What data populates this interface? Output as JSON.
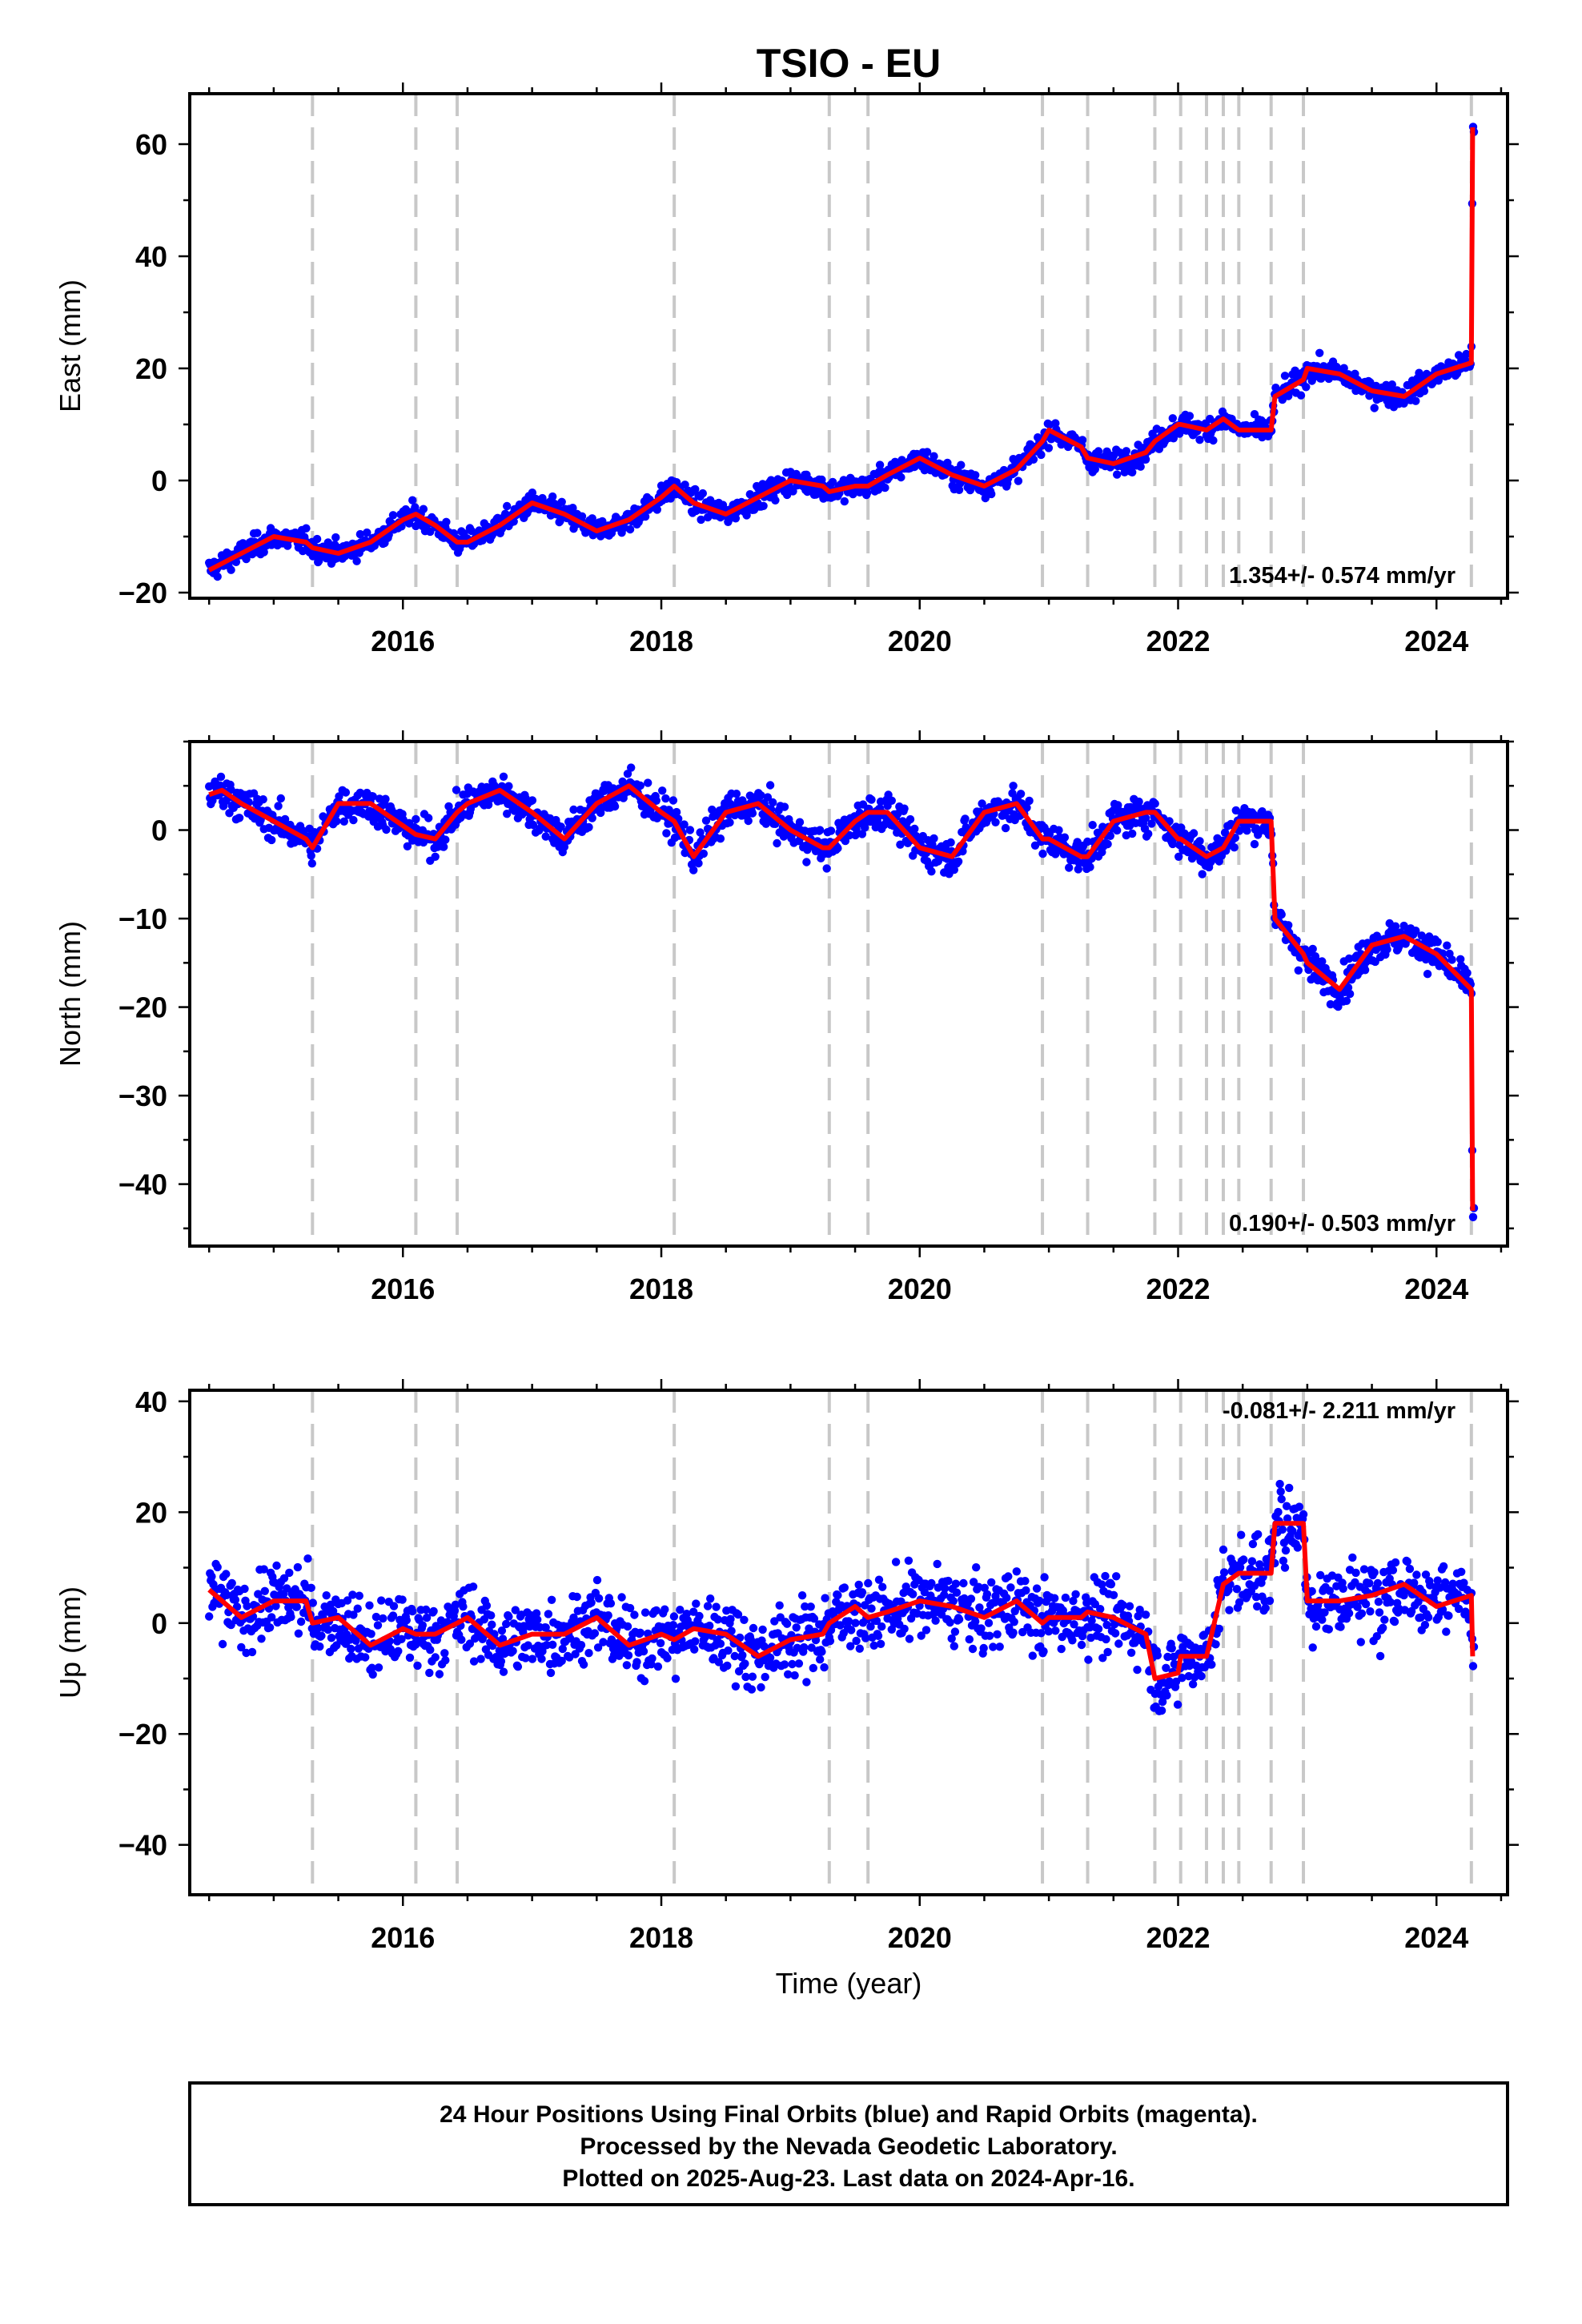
{
  "title": "TSIO - EU",
  "xlabel": "Time (year)",
  "colors": {
    "points": "#0000ff",
    "model": "#ff0000",
    "event_lines": "#c8c8c8",
    "frame": "#000000"
  },
  "caption": {
    "line1": "24 Hour Positions Using Final Orbits (blue) and Rapid Orbits (magenta).",
    "line2": "Processed by the Nevada Geodetic Laboratory.",
    "line3": "Plotted on 2025-Aug-23. Last data on 2024-Apr-16."
  },
  "chart_data": [
    {
      "type": "scatter",
      "panel": "east",
      "ylabel": "East (mm)",
      "rate_label": "1.354+/- 0.574 mm/yr",
      "xlim": [
        2014.35,
        2024.55
      ],
      "ylim": [
        -21,
        69
      ],
      "xticks": [
        2016,
        2018,
        2020,
        2022,
        2024
      ],
      "xtick_labels": [
        "2016",
        "2018",
        "2020",
        "2022",
        "2024"
      ],
      "yticks": [
        -20,
        0,
        20,
        40,
        60
      ],
      "ytick_labels": [
        "−20",
        "0",
        "20",
        "40",
        "60"
      ],
      "event_lines": [
        2015.3,
        2016.1,
        2016.42,
        2018.1,
        2019.3,
        2019.6,
        2020.95,
        2021.3,
        2021.82,
        2022.02,
        2022.22,
        2022.35,
        2022.47,
        2022.72,
        2022.97,
        2024.27
      ],
      "series": [
        {
          "role": "model",
          "x": [
            2014.5,
            2014.75,
            2015.0,
            2015.25,
            2015.3,
            2015.5,
            2015.75,
            2016.0,
            2016.1,
            2016.25,
            2016.42,
            2016.5,
            2016.75,
            2017.0,
            2017.25,
            2017.5,
            2017.75,
            2018.0,
            2018.1,
            2018.25,
            2018.5,
            2018.75,
            2019.0,
            2019.25,
            2019.3,
            2019.5,
            2019.6,
            2019.75,
            2020.0,
            2020.25,
            2020.5,
            2020.75,
            2020.95,
            2021.0,
            2021.25,
            2021.3,
            2021.5,
            2021.75,
            2021.82,
            2022.0,
            2022.02,
            2022.22,
            2022.35,
            2022.47,
            2022.72,
            2022.75,
            2022.97,
            2023.0,
            2023.25,
            2023.5,
            2023.75,
            2024.0,
            2024.27,
            2024.28
          ],
          "y": [
            -16,
            -13,
            -10,
            -11,
            -12,
            -13,
            -11,
            -7,
            -6,
            -8,
            -11,
            -11,
            -8,
            -4,
            -6,
            -9,
            -7,
            -3,
            -1,
            -4,
            -6,
            -3,
            0,
            -1,
            -2,
            -1,
            -1,
            1,
            4,
            1,
            -1,
            2,
            7,
            9,
            6,
            4,
            3,
            5,
            7,
            10,
            10,
            9,
            11,
            9,
            9,
            15,
            18,
            20,
            19,
            16,
            15,
            19,
            21,
            63
          ]
        }
      ]
    },
    {
      "type": "scatter",
      "panel": "north",
      "ylabel": "North (mm)",
      "rate_label": "0.190+/- 0.503 mm/yr",
      "xlim": [
        2014.35,
        2024.55
      ],
      "ylim": [
        -47,
        10
      ],
      "xticks": [
        2016,
        2018,
        2020,
        2022,
        2024
      ],
      "xtick_labels": [
        "2016",
        "2018",
        "2020",
        "2022",
        "2024"
      ],
      "yticks": [
        -40,
        -30,
        -20,
        -10,
        0
      ],
      "ytick_labels": [
        "−40",
        "−30",
        "−20",
        "−10",
        "0"
      ],
      "event_lines": [
        2015.3,
        2016.1,
        2016.42,
        2018.1,
        2019.3,
        2019.6,
        2020.95,
        2021.3,
        2021.82,
        2022.02,
        2022.22,
        2022.35,
        2022.47,
        2022.72,
        2022.97,
        2024.27
      ],
      "series": [
        {
          "role": "model",
          "x": [
            2014.5,
            2014.6,
            2014.75,
            2015.0,
            2015.25,
            2015.3,
            2015.5,
            2015.75,
            2016.0,
            2016.1,
            2016.25,
            2016.42,
            2016.5,
            2016.75,
            2017.0,
            2017.25,
            2017.5,
            2017.75,
            2018.0,
            2018.1,
            2018.25,
            2018.5,
            2018.75,
            2019.0,
            2019.25,
            2019.3,
            2019.5,
            2019.6,
            2019.75,
            2020.0,
            2020.25,
            2020.5,
            2020.75,
            2020.95,
            2021.0,
            2021.25,
            2021.3,
            2021.5,
            2021.75,
            2021.82,
            2022.0,
            2022.02,
            2022.22,
            2022.35,
            2022.47,
            2022.72,
            2022.75,
            2022.97,
            2023.0,
            2023.25,
            2023.5,
            2023.75,
            2024.0,
            2024.27,
            2024.28
          ],
          "y": [
            4,
            4.5,
            3,
            1,
            -1,
            -2,
            3,
            3,
            0.5,
            -0.5,
            -1,
            2,
            3,
            4.5,
            2,
            -1,
            3,
            5,
            2,
            1,
            -3,
            2,
            3,
            0,
            -2,
            -2,
            1,
            2,
            2,
            -2,
            -3,
            2,
            3,
            -1,
            -1,
            -3,
            -3,
            1,
            2,
            2,
            -1,
            -1,
            -3,
            -2,
            1,
            1,
            -10,
            -14,
            -15,
            -18,
            -13,
            -12,
            -14,
            -18,
            -43
          ]
        }
      ]
    },
    {
      "type": "scatter",
      "panel": "up",
      "ylabel": "Up (mm)",
      "rate_label": "-0.081+/- 2.211 mm/yr",
      "xlim": [
        2014.35,
        2024.55
      ],
      "ylim": [
        -49,
        42
      ],
      "xticks": [
        2016,
        2018,
        2020,
        2022,
        2024
      ],
      "xtick_labels": [
        "2016",
        "2018",
        "2020",
        "2022",
        "2024"
      ],
      "yticks": [
        -40,
        -20,
        0,
        20,
        40
      ],
      "ytick_labels": [
        "−40",
        "−20",
        "0",
        "20",
        "40"
      ],
      "event_lines": [
        2015.3,
        2016.1,
        2016.42,
        2018.1,
        2019.3,
        2019.6,
        2020.95,
        2021.3,
        2021.82,
        2022.02,
        2022.22,
        2022.35,
        2022.47,
        2022.72,
        2022.97,
        2024.27
      ],
      "series": [
        {
          "role": "model",
          "x": [
            2014.5,
            2014.75,
            2015.0,
            2015.25,
            2015.3,
            2015.5,
            2015.75,
            2016.0,
            2016.1,
            2016.25,
            2016.42,
            2016.5,
            2016.75,
            2017.0,
            2017.25,
            2017.5,
            2017.75,
            2018.0,
            2018.1,
            2018.25,
            2018.5,
            2018.75,
            2019.0,
            2019.25,
            2019.3,
            2019.5,
            2019.6,
            2019.75,
            2020.0,
            2020.25,
            2020.5,
            2020.75,
            2020.95,
            2021.0,
            2021.25,
            2021.3,
            2021.5,
            2021.75,
            2021.82,
            2022.0,
            2022.02,
            2022.22,
            2022.35,
            2022.47,
            2022.72,
            2022.75,
            2022.97,
            2023.0,
            2023.25,
            2023.5,
            2023.75,
            2024.0,
            2024.27,
            2024.28
          ],
          "y": [
            6,
            1,
            4,
            4,
            0,
            1,
            -4,
            -1,
            -2,
            -2,
            0,
            1,
            -4,
            -2,
            -2,
            1,
            -4,
            -2,
            -3,
            -1,
            -2,
            -6,
            -3,
            -2,
            0,
            3,
            1,
            2,
            4,
            3,
            1,
            4,
            0,
            1,
            1,
            2,
            1,
            -2,
            -10,
            -9,
            -6,
            -6,
            7,
            9,
            9,
            18,
            18,
            4,
            4,
            5,
            7,
            3,
            5,
            -6
          ]
        }
      ]
    }
  ]
}
